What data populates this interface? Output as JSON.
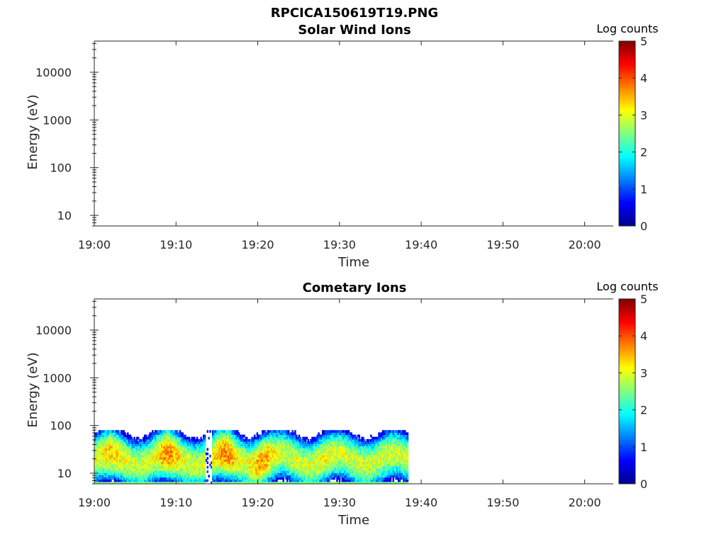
{
  "figure_title": "RPCICA150619T19.PNG",
  "colors": {
    "axis": "#262626",
    "background": "#ffffff",
    "colormap": "jet"
  },
  "chart_data": [
    {
      "type": "heatmap",
      "title": "Solar Wind Ions",
      "xlabel": "Time",
      "ylabel": "Energy (eV)",
      "x_tick_labels": [
        "19:00",
        "19:10",
        "19:20",
        "19:30",
        "19:40",
        "19:50",
        "20:00"
      ],
      "y_ticks": [
        10,
        100,
        1000,
        10000
      ],
      "y_tick_labels": [
        "10",
        "100",
        "1000",
        "10000"
      ],
      "y_scale": "log",
      "ylim": [
        6,
        45000
      ],
      "xlim_minutes_after_1900": [
        0,
        63.5
      ],
      "colorbar": {
        "label": "Log counts",
        "ticks": [
          "0",
          "1",
          "2",
          "3",
          "4",
          "5"
        ],
        "range": [
          0,
          5
        ]
      },
      "data": []
    },
    {
      "type": "heatmap",
      "title": "Cometary Ions",
      "xlabel": "Time",
      "ylabel": "Energy (eV)",
      "x_tick_labels": [
        "19:00",
        "19:10",
        "19:20",
        "19:30",
        "19:40",
        "19:50",
        "20:00"
      ],
      "y_ticks": [
        10,
        100,
        1000,
        10000
      ],
      "y_tick_labels": [
        "10",
        "100",
        "1000",
        "10000"
      ],
      "y_scale": "log",
      "ylim": [
        6,
        45000
      ],
      "xlim_minutes_after_1900": [
        0,
        63.5
      ],
      "colorbar": {
        "label": "Log counts",
        "ticks": [
          "0",
          "1",
          "2",
          "3",
          "4",
          "5"
        ],
        "range": [
          0,
          5
        ]
      },
      "data": {
        "time_range_minutes_after_1900": [
          0,
          38.3
        ],
        "energy_range_eV": [
          6,
          80
        ],
        "peak_energy_eV": 20,
        "typical_log_counts_at_peak": 3.4,
        "max_log_counts": 4.1,
        "high_count_periods_minutes": [
          {
            "center": 2,
            "level": 3.6
          },
          {
            "center": 9,
            "level": 3.9
          },
          {
            "center": 16,
            "level": 3.9
          },
          {
            "center": 20.5,
            "level": 3.8
          },
          {
            "center": 28,
            "level": 3.3
          }
        ],
        "data_gap_minutes": [
          13.5,
          14.4
        ]
      }
    }
  ]
}
